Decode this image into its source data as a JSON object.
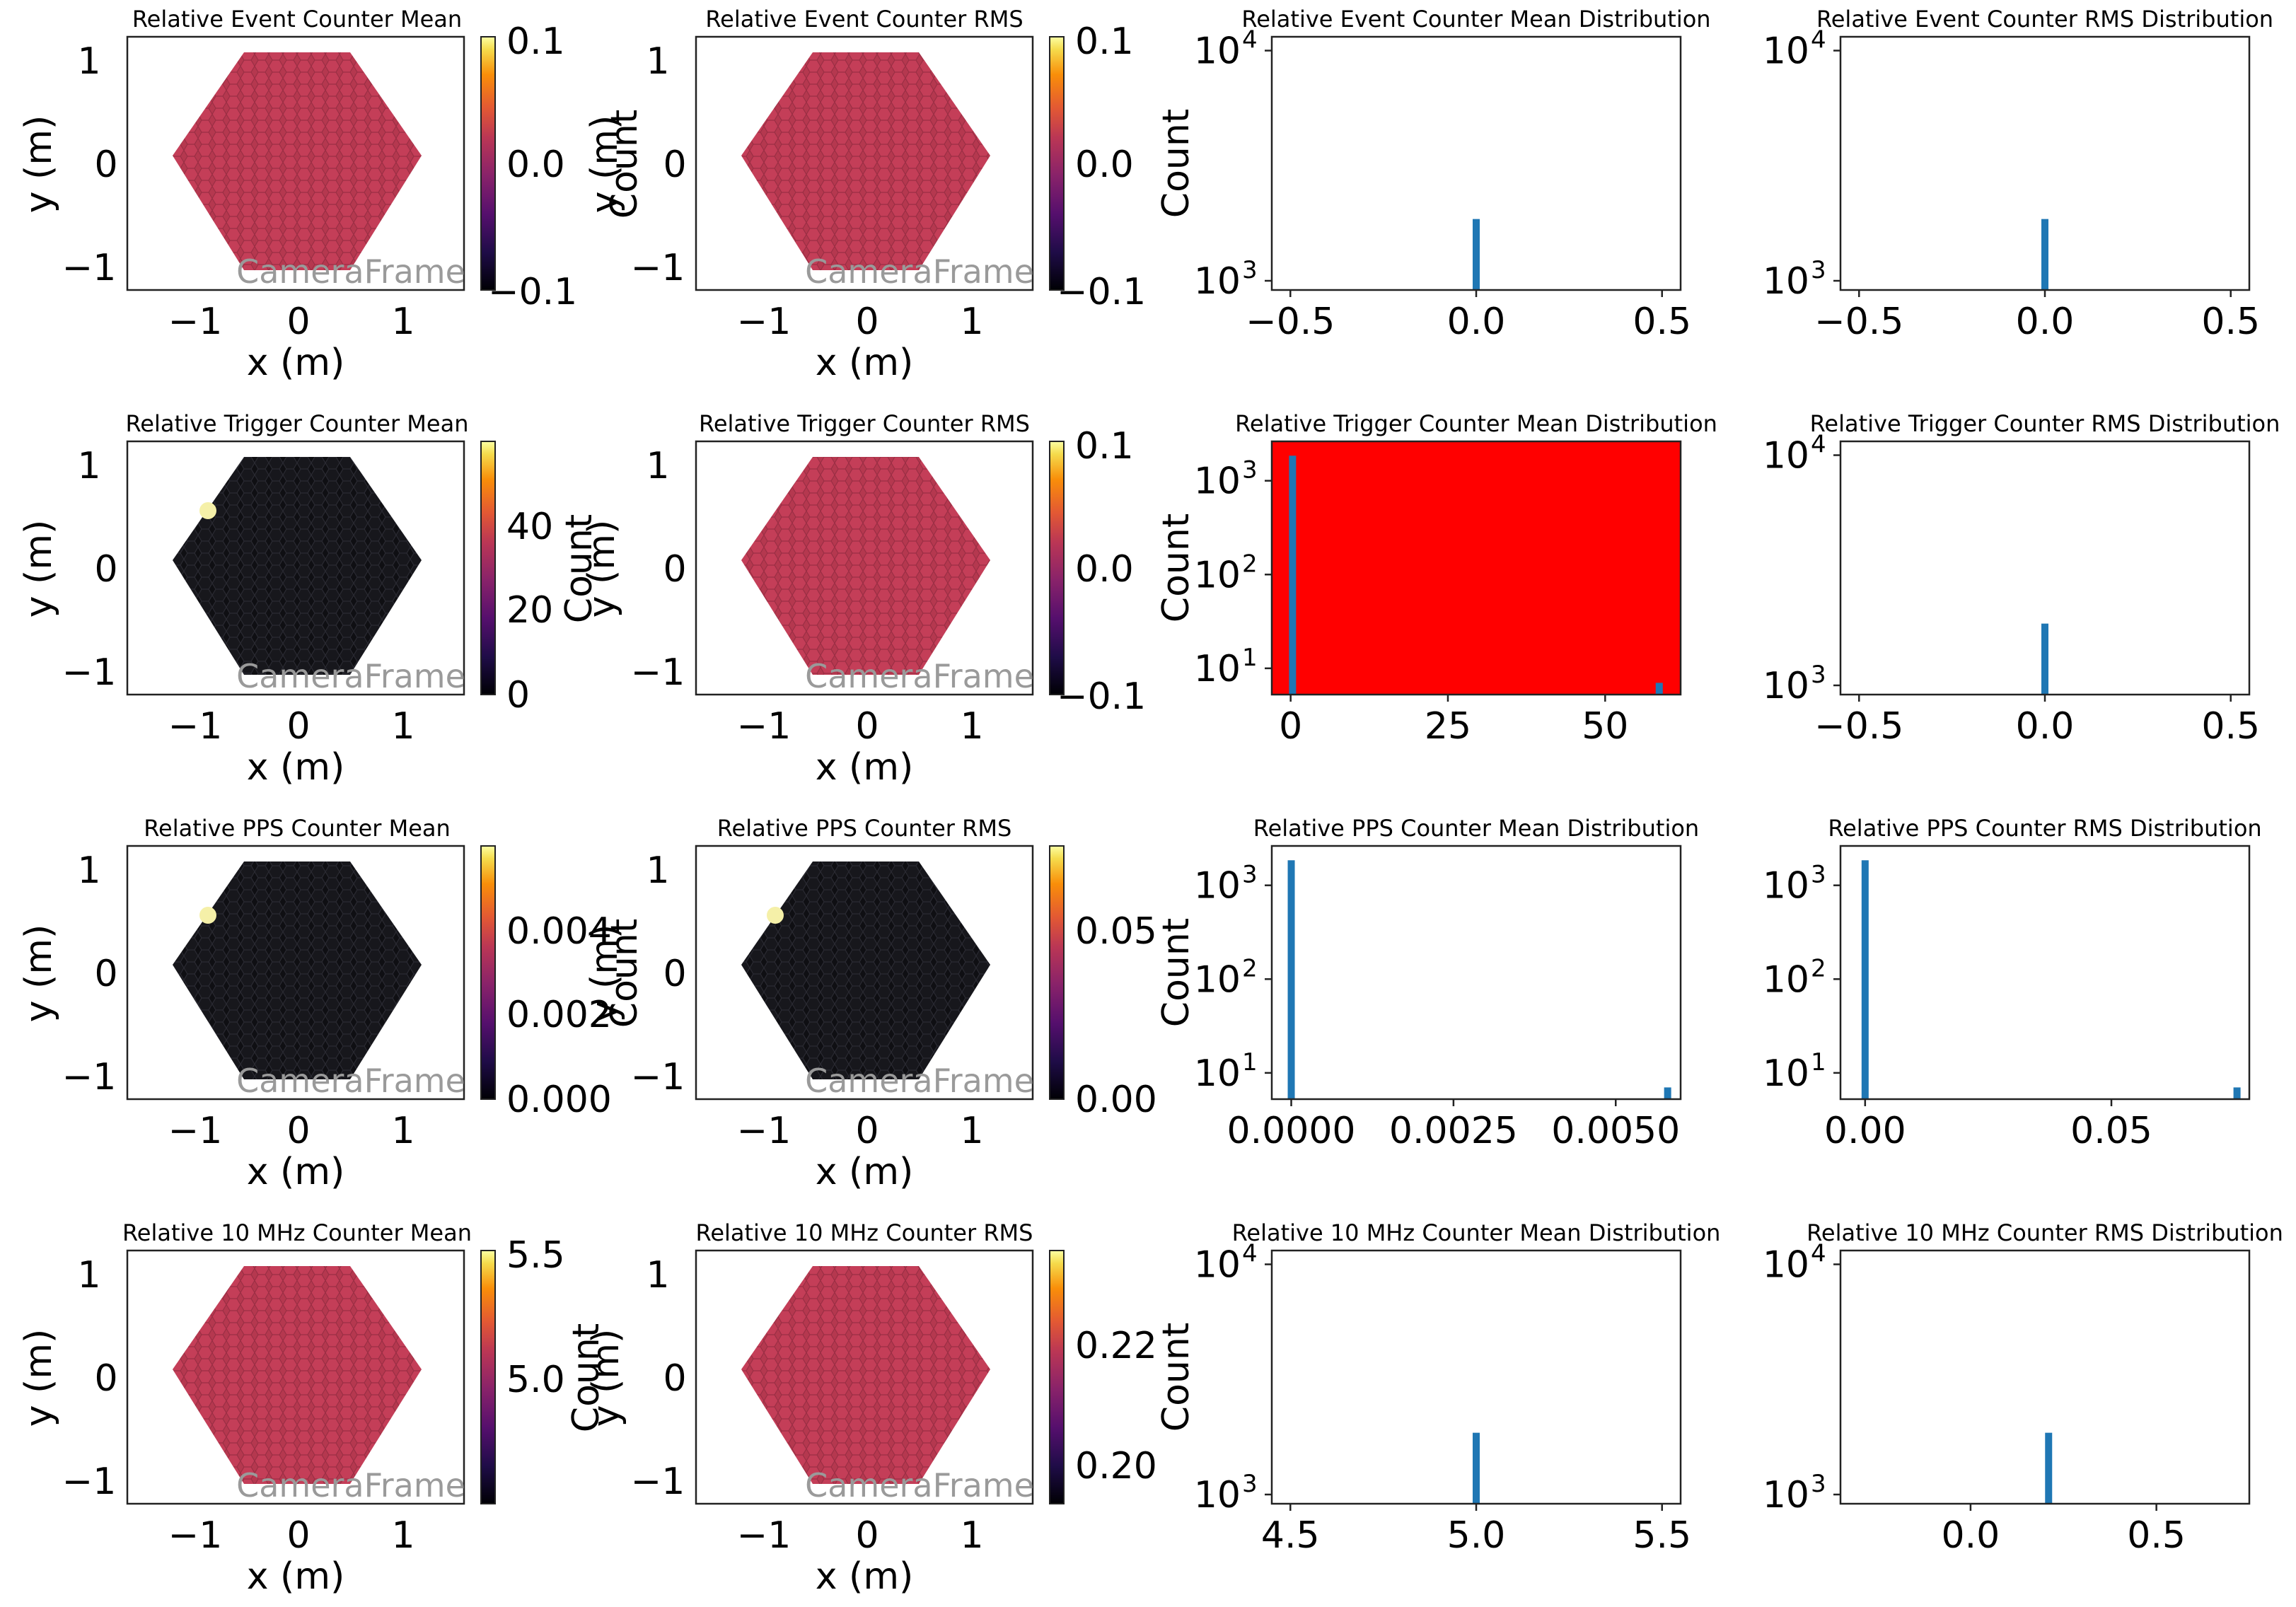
{
  "watermark": "CameraFrame",
  "camera_panels": [
    {
      "title": "Relative Event Counter Mean",
      "mode": "uniform",
      "cbar_ticks": [
        "0.1",
        "0.0",
        "−0.1"
      ],
      "cbar_label": "",
      "hot_pixel": false,
      "xticks": [
        "−1",
        "0",
        "1"
      ],
      "yticks": [
        "1",
        "0",
        "−1"
      ],
      "xlabel": "x  (m)",
      "ylabel": "y  (m)"
    },
    {
      "title": "Relative Event Counter RMS",
      "mode": "uniform",
      "cbar_ticks": [
        "0.1",
        "0.0",
        "−0.1"
      ],
      "cbar_label": "",
      "hot_pixel": false,
      "xticks": [
        "−1",
        "0",
        "1"
      ],
      "yticks": [
        "1",
        "0",
        "−1"
      ],
      "xlabel": "x  (m)",
      "ylabel": ""
    },
    {
      "title": "Relative Trigger Counter Mean",
      "mode": "dark",
      "cbar_ticks": [
        "40",
        "20",
        "0"
      ],
      "cbar_label": "",
      "hot_pixel": true,
      "xticks": [
        "−1",
        "0",
        "1"
      ],
      "yticks": [
        "1",
        "0",
        "−1"
      ],
      "xlabel": "x  (m)",
      "ylabel": "y  (m)"
    },
    {
      "title": "Relative Trigger Counter RMS",
      "mode": "uniform",
      "cbar_ticks": [
        "0.1",
        "0.0",
        "−0.1"
      ],
      "cbar_label": "",
      "hot_pixel": false,
      "xticks": [
        "−1",
        "0",
        "1"
      ],
      "yticks": [
        "1",
        "0",
        "−1"
      ],
      "xlabel": "x  (m)",
      "ylabel": ""
    },
    {
      "title": "Relative PPS Counter Mean",
      "mode": "dark",
      "cbar_ticks": [
        "0.004",
        "0.002",
        "0.000"
      ],
      "cbar_label": "",
      "hot_pixel": true,
      "xticks": [
        "−1",
        "0",
        "1"
      ],
      "yticks": [
        "1",
        "0",
        "−1"
      ],
      "xlabel": "x  (m)",
      "ylabel": "y  (m)"
    },
    {
      "title": "Relative PPS Counter RMS",
      "mode": "dark",
      "cbar_ticks": [
        "0.05",
        "0.00"
      ],
      "cbar_label": "",
      "hot_pixel": true,
      "xticks": [
        "−1",
        "0",
        "1"
      ],
      "yticks": [
        "1",
        "0",
        "−1"
      ],
      "xlabel": "x  (m)",
      "ylabel": ""
    },
    {
      "title": "Relative 10 MHz Counter Mean",
      "mode": "uniform",
      "cbar_ticks": [
        "5.5",
        "5.0"
      ],
      "cbar_label": "",
      "hot_pixel": false,
      "xticks": [
        "−1",
        "0",
        "1"
      ],
      "yticks": [
        "1",
        "0",
        "−1"
      ],
      "xlabel": "x  (m)",
      "ylabel": "y  (m)"
    },
    {
      "title": "Relative 10 MHz Counter RMS",
      "mode": "uniform",
      "cbar_ticks": [
        "0.22",
        "0.20"
      ],
      "cbar_label": "",
      "hot_pixel": false,
      "xticks": [
        "−1",
        "0",
        "1"
      ],
      "yticks": [
        "1",
        "0",
        "−1"
      ],
      "xlabel": "x  (m)",
      "ylabel": ""
    }
  ],
  "overlap_labels": [
    {
      "text": "y  (m)"
    },
    {
      "text": "Count"
    },
    {
      "text": "Count"
    },
    {
      "text": "y  (m)"
    },
    {
      "text": "y  (m)"
    },
    {
      "text": "Count"
    },
    {
      "text": "Count"
    },
    {
      "text": "y  (m)"
    }
  ],
  "chart_data": [
    {
      "type": "bar",
      "title": "Relative Event Counter Mean Distribution",
      "ylabel": "Count",
      "yscale": "log",
      "xlim": [
        -0.55,
        0.55
      ],
      "ylim_exp": [
        2.96,
        4.06
      ],
      "xticks": [
        -0.5,
        0.0,
        0.5
      ],
      "xtick_labels": [
        "−0.5",
        "0.0",
        "0.5"
      ],
      "ytick_exps": [
        3,
        4
      ],
      "ytick_labels": [
        "10",
        "10"
      ],
      "ytick_sups": [
        "3",
        "4"
      ],
      "bars": [
        {
          "x": 0.0,
          "count": 1855
        }
      ],
      "bg": "#ffffff"
    },
    {
      "type": "bar",
      "title": "Relative Event Counter RMS Distribution",
      "ylabel": "",
      "yscale": "log",
      "xlim": [
        -0.55,
        0.55
      ],
      "ylim_exp": [
        2.96,
        4.06
      ],
      "xticks": [
        -0.5,
        0.0,
        0.5
      ],
      "xtick_labels": [
        "−0.5",
        "0.0",
        "0.5"
      ],
      "ytick_exps": [
        3,
        4
      ],
      "ytick_labels": [
        "10",
        "10"
      ],
      "ytick_sups": [
        "3",
        "4"
      ],
      "bars": [
        {
          "x": 0.0,
          "count": 1855
        }
      ],
      "bg": "#ffffff"
    },
    {
      "type": "bar",
      "title": "Relative Trigger Counter Mean Distribution",
      "ylabel": "Count",
      "yscale": "log",
      "xlim": [
        -3,
        62
      ],
      "ylim_exp": [
        0.72,
        3.42
      ],
      "xticks": [
        0,
        25,
        50
      ],
      "xtick_labels": [
        "0",
        "25",
        "50"
      ],
      "ytick_exps": [
        1,
        2,
        3
      ],
      "ytick_labels": [
        "10",
        "10",
        "10"
      ],
      "ytick_sups": [
        "1",
        "2",
        "3"
      ],
      "bars": [
        {
          "x": 0.3,
          "count": 1850
        },
        {
          "x": 58.6,
          "count": 7
        }
      ],
      "bg": "#ff0000"
    },
    {
      "type": "bar",
      "title": "Relative Trigger Counter RMS Distribution",
      "ylabel": "",
      "yscale": "log",
      "xlim": [
        -0.55,
        0.55
      ],
      "ylim_exp": [
        2.96,
        4.06
      ],
      "xticks": [
        -0.5,
        0.0,
        0.5
      ],
      "xtick_labels": [
        "−0.5",
        "0.0",
        "0.5"
      ],
      "ytick_exps": [
        3,
        4
      ],
      "ytick_labels": [
        "10",
        "10"
      ],
      "ytick_sups": [
        "3",
        "4"
      ],
      "bars": [
        {
          "x": 0.0,
          "count": 1855
        }
      ],
      "bg": "#ffffff"
    },
    {
      "type": "bar",
      "title": "Relative PPS Counter Mean Distribution",
      "ylabel": "Count",
      "yscale": "log",
      "xlim": [
        -0.0003,
        0.006
      ],
      "ylim_exp": [
        0.72,
        3.42
      ],
      "xticks": [
        0.0,
        0.0025,
        0.005
      ],
      "xtick_labels": [
        "0.0000",
        "0.0025",
        "0.0050"
      ],
      "ytick_exps": [
        1,
        2,
        3
      ],
      "ytick_labels": [
        "10",
        "10",
        "10"
      ],
      "ytick_sups": [
        "1",
        "2",
        "3"
      ],
      "bars": [
        {
          "x": 0.0,
          "count": 1850
        },
        {
          "x": 0.0058,
          "count": 7
        }
      ],
      "bg": "#ffffff"
    },
    {
      "type": "bar",
      "title": "Relative PPS Counter RMS Distribution",
      "ylabel": "",
      "yscale": "log",
      "xlim": [
        -0.005,
        0.078
      ],
      "ylim_exp": [
        0.72,
        3.42
      ],
      "xticks": [
        0.0,
        0.05
      ],
      "xtick_labels": [
        "0.00",
        "0.05"
      ],
      "ytick_exps": [
        1,
        2,
        3
      ],
      "ytick_labels": [
        "10",
        "10",
        "10"
      ],
      "ytick_sups": [
        "1",
        "2",
        "3"
      ],
      "bars": [
        {
          "x": 0.0,
          "count": 1850
        },
        {
          "x": 0.0755,
          "count": 7
        }
      ],
      "bg": "#ffffff"
    },
    {
      "type": "bar",
      "title": "Relative 10 MHz Counter Mean Distribution",
      "ylabel": "Count",
      "yscale": "log",
      "xlim": [
        4.45,
        5.55
      ],
      "ylim_exp": [
        2.96,
        4.06
      ],
      "xticks": [
        4.5,
        5.0,
        5.5
      ],
      "xtick_labels": [
        "4.5",
        "5.0",
        "5.5"
      ],
      "ytick_exps": [
        3,
        4
      ],
      "ytick_labels": [
        "10",
        "10"
      ],
      "ytick_sups": [
        "3",
        "4"
      ],
      "bars": [
        {
          "x": 5.0,
          "count": 1855
        }
      ],
      "bg": "#ffffff"
    },
    {
      "type": "bar",
      "title": "Relative 10 MHz Counter RMS Distribution",
      "ylabel": "",
      "yscale": "log",
      "xlim": [
        -0.35,
        0.75
      ],
      "ylim_exp": [
        2.96,
        4.06
      ],
      "xticks": [
        0.0,
        0.5
      ],
      "xtick_labels": [
        "0.0",
        "0.5"
      ],
      "ytick_exps": [
        3,
        4
      ],
      "ytick_labels": [
        "10",
        "10"
      ],
      "ytick_sups": [
        "3",
        "4"
      ],
      "bars": [
        {
          "x": 0.21,
          "count": 1855
        }
      ],
      "bg": "#ffffff"
    }
  ],
  "colors": {
    "bar": "#1f77b4",
    "uniform_fill": "#b5384f",
    "uniform_cell": "#c43e58",
    "dark_fill": "#0f0f13",
    "dark_cell": "#1c1c22",
    "hot": "#f5f0a8",
    "highlight_bg": "#ff0000"
  }
}
